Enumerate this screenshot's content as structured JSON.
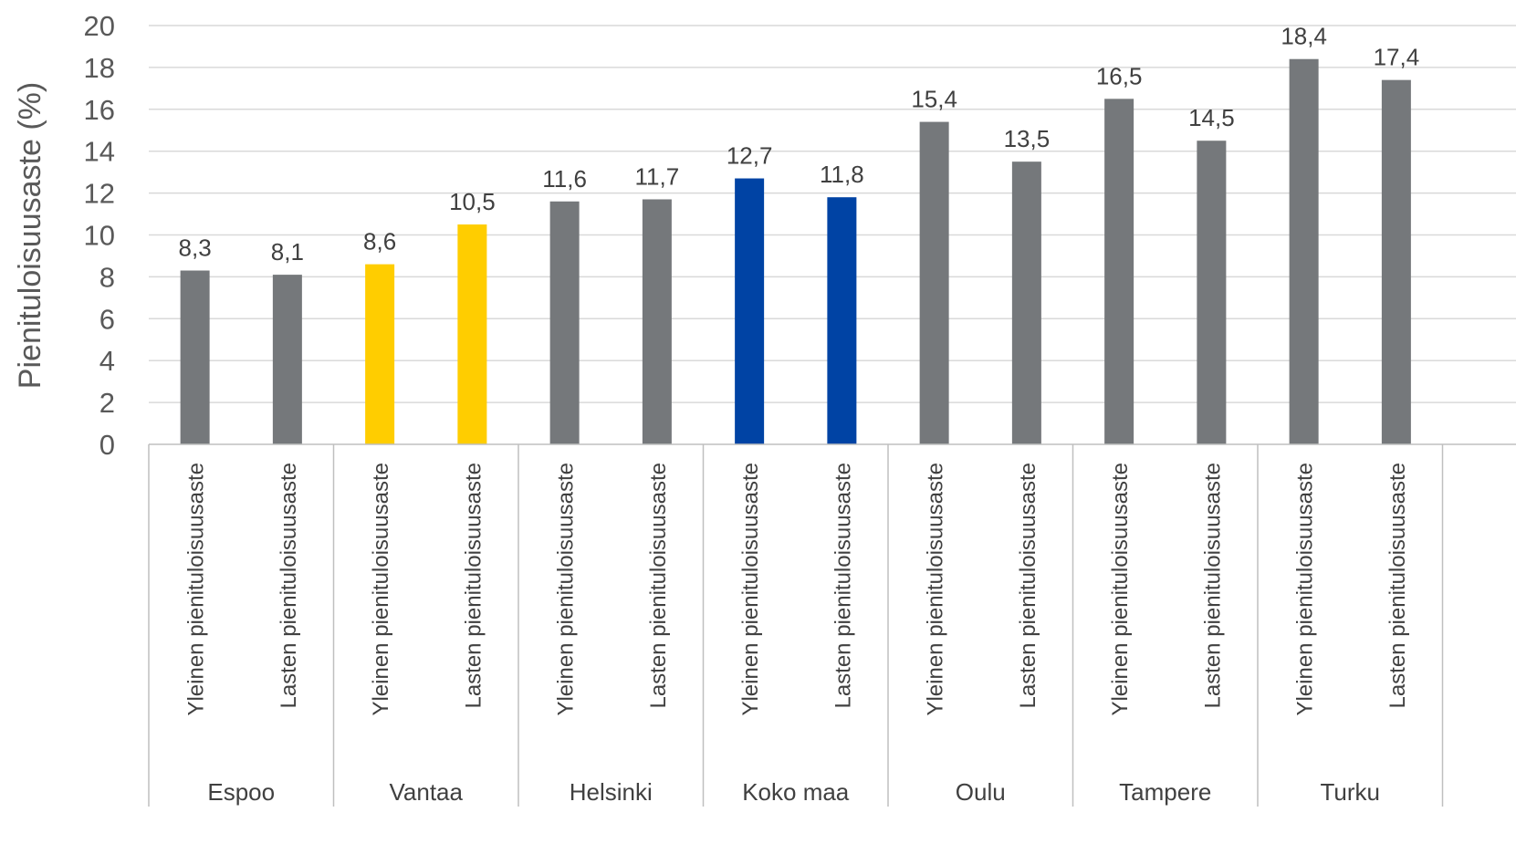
{
  "chart_data": {
    "type": "bar",
    "ylabel": "Pienituloisuusaste (%)",
    "ylim": [
      0,
      20
    ],
    "yticks": [
      "0",
      "2",
      "4",
      "6",
      "8",
      "10",
      "12",
      "14",
      "16",
      "18",
      "20"
    ],
    "grid": true,
    "groups": [
      {
        "name": "Espoo",
        "color": "#75787b",
        "bars": [
          {
            "label": "Yleinen pienituloisuusaste",
            "value": 8.3,
            "text": "8,3"
          },
          {
            "label": "Lasten pienituloisuusaste",
            "value": 8.1,
            "text": "8,1"
          }
        ]
      },
      {
        "name": "Vantaa",
        "color": "#ffcd00",
        "bars": [
          {
            "label": "Yleinen pienituloisuusaste",
            "value": 8.6,
            "text": "8,6"
          },
          {
            "label": "Lasten pienituloisuusaste",
            "value": 10.5,
            "text": "10,5"
          }
        ]
      },
      {
        "name": "Helsinki",
        "color": "#75787b",
        "bars": [
          {
            "label": "Yleinen pienituloisuusaste",
            "value": 11.6,
            "text": "11,6"
          },
          {
            "label": "Lasten pienituloisuusaste",
            "value": 11.7,
            "text": "11,7"
          }
        ]
      },
      {
        "name": "Koko maa",
        "color": "#0043a4",
        "bars": [
          {
            "label": "Yleinen pienituloisuusaste",
            "value": 12.7,
            "text": "12,7"
          },
          {
            "label": "Lasten pienituloisuusaste",
            "value": 11.8,
            "text": "11,8"
          }
        ]
      },
      {
        "name": "Oulu",
        "color": "#75787b",
        "bars": [
          {
            "label": "Yleinen pienituloisuusaste",
            "value": 15.4,
            "text": "15,4"
          },
          {
            "label": "Lasten pienituloisuusaste",
            "value": 13.5,
            "text": "13,5"
          }
        ]
      },
      {
        "name": "Tampere",
        "color": "#75787b",
        "bars": [
          {
            "label": "Yleinen pienituloisuusaste",
            "value": 16.5,
            "text": "16,5"
          },
          {
            "label": "Lasten pienituloisuusaste",
            "value": 14.5,
            "text": "14,5"
          }
        ]
      },
      {
        "name": "Turku",
        "color": "#75787b",
        "bars": [
          {
            "label": "Yleinen pienituloisuusaste",
            "value": 18.4,
            "text": "18,4"
          },
          {
            "label": "Lasten pienituloisuusaste",
            "value": 17.4,
            "text": "17,4"
          }
        ]
      }
    ]
  }
}
